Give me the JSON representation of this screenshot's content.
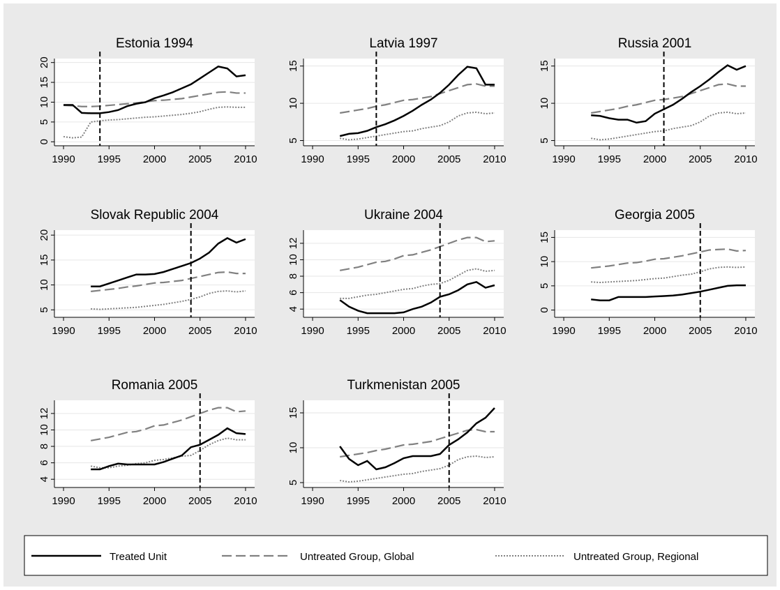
{
  "chart_data": [
    {
      "type": "line",
      "title": "Estonia 1994",
      "vline": 1994,
      "x": [
        1990,
        1991,
        1992,
        1993,
        1994,
        1995,
        1996,
        1997,
        1998,
        1999,
        2000,
        2001,
        2002,
        2003,
        2004,
        2005,
        2006,
        2007,
        2008,
        2009,
        2010
      ],
      "series": [
        {
          "color": "#000000",
          "style": "solid",
          "values": [
            9.3,
            9.3,
            7.3,
            7.2,
            7.2,
            7.5,
            8.0,
            9.0,
            9.6,
            10.0,
            11.0,
            11.7,
            12.5,
            13.5,
            14.5,
            16.0,
            17.5,
            19.0,
            18.5,
            16.5,
            16.8
          ]
        },
        {
          "color": "#808080",
          "style": "longdash",
          "values": [
            9.2,
            9.1,
            8.9,
            8.9,
            9.0,
            9.2,
            9.4,
            9.6,
            9.8,
            10.1,
            10.4,
            10.5,
            10.7,
            10.9,
            11.3,
            11.7,
            12.1,
            12.5,
            12.6,
            12.3,
            12.3
          ]
        },
        {
          "color": "#808080",
          "style": "dot",
          "values": [
            1.3,
            1.0,
            1.2,
            5.0,
            5.3,
            5.5,
            5.6,
            5.8,
            6.0,
            6.2,
            6.3,
            6.5,
            6.7,
            6.9,
            7.2,
            7.6,
            8.2,
            8.7,
            8.8,
            8.7,
            8.7
          ]
        }
      ],
      "xlim": [
        1989,
        2011
      ],
      "xticks": [
        1990,
        1995,
        2000,
        2005,
        2010
      ],
      "ylim": [
        -1,
        21
      ],
      "yticks": [
        0,
        5,
        10,
        15,
        20
      ]
    },
    {
      "type": "line",
      "title": "Latvia 1997",
      "vline": 1997,
      "x": [
        1993,
        1994,
        1995,
        1996,
        1997,
        1998,
        1999,
        2000,
        2001,
        2002,
        2003,
        2004,
        2005,
        2006,
        2007,
        2008,
        2009,
        2010
      ],
      "series": [
        {
          "color": "#000000",
          "style": "solid",
          "values": [
            5.6,
            5.9,
            6.0,
            6.3,
            6.8,
            7.2,
            7.7,
            8.3,
            9.0,
            9.8,
            10.5,
            11.4,
            12.5,
            13.8,
            14.9,
            14.7,
            12.5,
            12.5
          ]
        },
        {
          "color": "#808080",
          "style": "longdash",
          "values": [
            8.7,
            8.9,
            9.1,
            9.3,
            9.6,
            9.8,
            10.1,
            10.4,
            10.5,
            10.7,
            10.9,
            11.3,
            11.7,
            12.1,
            12.5,
            12.6,
            12.3,
            12.3
          ]
        },
        {
          "color": "#808080",
          "style": "dot",
          "values": [
            5.3,
            5.1,
            5.2,
            5.4,
            5.6,
            5.8,
            6.0,
            6.2,
            6.3,
            6.6,
            6.8,
            7.0,
            7.5,
            8.3,
            8.7,
            8.8,
            8.6,
            8.7
          ]
        }
      ],
      "xlim": [
        1989,
        2011
      ],
      "xticks": [
        1990,
        1995,
        2000,
        2005,
        2010
      ],
      "ylim": [
        4.3,
        16
      ],
      "yticks": [
        5,
        10,
        15
      ]
    },
    {
      "type": "line",
      "title": "Russia 2001",
      "vline": 2001,
      "x": [
        1993,
        1994,
        1995,
        1996,
        1997,
        1998,
        1999,
        2000,
        2001,
        2002,
        2003,
        2004,
        2005,
        2006,
        2007,
        2008,
        2009,
        2010
      ],
      "series": [
        {
          "color": "#000000",
          "style": "solid",
          "values": [
            8.4,
            8.3,
            8.0,
            7.8,
            7.8,
            7.4,
            7.6,
            8.6,
            9.2,
            9.8,
            10.6,
            11.5,
            12.3,
            13.2,
            14.2,
            15.1,
            14.5,
            15.0
          ]
        },
        {
          "color": "#808080",
          "style": "longdash",
          "values": [
            8.7,
            8.9,
            9.1,
            9.3,
            9.6,
            9.8,
            10.1,
            10.4,
            10.5,
            10.7,
            10.9,
            11.3,
            11.7,
            12.1,
            12.5,
            12.6,
            12.3,
            12.3
          ]
        },
        {
          "color": "#808080",
          "style": "dot",
          "values": [
            5.3,
            5.1,
            5.2,
            5.4,
            5.6,
            5.8,
            6.0,
            6.2,
            6.3,
            6.6,
            6.8,
            7.0,
            7.5,
            8.3,
            8.7,
            8.8,
            8.6,
            8.7
          ]
        }
      ],
      "xlim": [
        1989,
        2011
      ],
      "xticks": [
        1990,
        1995,
        2000,
        2005,
        2010
      ],
      "ylim": [
        4.3,
        16
      ],
      "yticks": [
        5,
        10,
        15
      ]
    },
    {
      "type": "line",
      "title": "Slovak Republic 2004",
      "vline": 2004,
      "x": [
        1993,
        1994,
        1995,
        1996,
        1997,
        1998,
        1999,
        2000,
        2001,
        2002,
        2003,
        2004,
        2005,
        2006,
        2007,
        2008,
        2009,
        2010
      ],
      "series": [
        {
          "color": "#000000",
          "style": "solid",
          "values": [
            9.7,
            9.7,
            10.3,
            10.9,
            11.5,
            12.1,
            12.1,
            12.2,
            12.6,
            13.2,
            13.8,
            14.4,
            15.3,
            16.5,
            18.3,
            19.4,
            18.5,
            19.2
          ]
        },
        {
          "color": "#808080",
          "style": "longdash",
          "values": [
            8.7,
            8.9,
            9.1,
            9.3,
            9.6,
            9.8,
            10.1,
            10.4,
            10.5,
            10.7,
            10.9,
            11.3,
            11.7,
            12.1,
            12.5,
            12.6,
            12.3,
            12.3
          ]
        },
        {
          "color": "#808080",
          "style": "dot",
          "values": [
            5.2,
            5.1,
            5.2,
            5.3,
            5.4,
            5.5,
            5.7,
            5.9,
            6.1,
            6.4,
            6.7,
            7.1,
            7.6,
            8.3,
            8.7,
            8.8,
            8.6,
            8.8
          ]
        }
      ],
      "xlim": [
        1989,
        2011
      ],
      "xticks": [
        1990,
        1995,
        2000,
        2005,
        2010
      ],
      "ylim": [
        3.5,
        21
      ],
      "yticks": [
        5,
        10,
        15,
        20
      ]
    },
    {
      "type": "line",
      "title": "Ukraine 2004",
      "vline": 2004,
      "x": [
        1993,
        1994,
        1995,
        1996,
        1997,
        1998,
        1999,
        2000,
        2001,
        2002,
        2003,
        2004,
        2005,
        2006,
        2007,
        2008,
        2009,
        2010
      ],
      "series": [
        {
          "color": "#000000",
          "style": "solid",
          "values": [
            5.1,
            4.3,
            3.8,
            3.5,
            3.5,
            3.5,
            3.5,
            3.6,
            4.0,
            4.3,
            4.8,
            5.5,
            5.8,
            6.3,
            7.0,
            7.3,
            6.6,
            6.9
          ]
        },
        {
          "color": "#808080",
          "style": "longdash",
          "values": [
            8.7,
            8.9,
            9.1,
            9.4,
            9.7,
            9.8,
            10.1,
            10.5,
            10.6,
            10.9,
            11.2,
            11.6,
            12.0,
            12.4,
            12.7,
            12.7,
            12.2,
            12.3
          ]
        },
        {
          "color": "#808080",
          "style": "dot",
          "values": [
            5.3,
            5.3,
            5.5,
            5.7,
            5.8,
            6.0,
            6.2,
            6.4,
            6.5,
            6.8,
            7.0,
            7.1,
            7.5,
            8.1,
            8.7,
            8.9,
            8.6,
            8.7
          ]
        }
      ],
      "xlim": [
        1989,
        2011
      ],
      "xticks": [
        1990,
        1995,
        2000,
        2005,
        2010
      ],
      "ylim": [
        3,
        13.6
      ],
      "yticks": [
        4,
        6,
        8,
        10,
        12
      ]
    },
    {
      "type": "line",
      "title": "Georgia 2005",
      "vline": 2005,
      "x": [
        1993,
        1994,
        1995,
        1996,
        1997,
        1998,
        1999,
        2000,
        2001,
        2002,
        2003,
        2004,
        2005,
        2006,
        2007,
        2008,
        2009,
        2010
      ],
      "series": [
        {
          "color": "#000000",
          "style": "solid",
          "values": [
            2.2,
            2.0,
            2.0,
            2.7,
            2.7,
            2.7,
            2.7,
            2.8,
            2.9,
            3.0,
            3.2,
            3.5,
            3.8,
            4.2,
            4.6,
            5.0,
            5.1,
            5.1
          ]
        },
        {
          "color": "#808080",
          "style": "longdash",
          "values": [
            8.7,
            8.9,
            9.1,
            9.4,
            9.7,
            9.8,
            10.1,
            10.5,
            10.6,
            10.9,
            11.2,
            11.6,
            12.0,
            12.4,
            12.5,
            12.6,
            12.2,
            12.3
          ]
        },
        {
          "color": "#808080",
          "style": "dot",
          "values": [
            5.8,
            5.7,
            5.8,
            5.9,
            6.0,
            6.1,
            6.3,
            6.5,
            6.6,
            6.9,
            7.2,
            7.4,
            7.9,
            8.5,
            8.8,
            8.9,
            8.8,
            8.9
          ]
        }
      ],
      "xlim": [
        1989,
        2011
      ],
      "xticks": [
        1990,
        1995,
        2000,
        2005,
        2010
      ],
      "ylim": [
        -1.5,
        16.5
      ],
      "yticks": [
        0,
        5,
        10,
        15
      ]
    },
    {
      "type": "line",
      "title": "Romania 2005",
      "vline": 2005,
      "x": [
        1993,
        1994,
        1995,
        1996,
        1997,
        1998,
        1999,
        2000,
        2001,
        2002,
        2003,
        2004,
        2005,
        2006,
        2007,
        2008,
        2009,
        2010
      ],
      "series": [
        {
          "color": "#000000",
          "style": "solid",
          "values": [
            5.2,
            5.2,
            5.6,
            5.9,
            5.8,
            5.8,
            5.8,
            5.8,
            6.1,
            6.5,
            6.9,
            7.9,
            8.2,
            8.8,
            9.4,
            10.2,
            9.6,
            9.5
          ]
        },
        {
          "color": "#808080",
          "style": "longdash",
          "values": [
            8.7,
            8.9,
            9.1,
            9.4,
            9.7,
            9.8,
            10.1,
            10.5,
            10.6,
            10.9,
            11.2,
            11.6,
            12.0,
            12.4,
            12.7,
            12.7,
            12.2,
            12.3
          ]
        },
        {
          "color": "#808080",
          "style": "dot",
          "values": [
            5.6,
            5.4,
            5.4,
            5.6,
            5.7,
            5.9,
            6.0,
            6.3,
            6.4,
            6.6,
            6.8,
            6.9,
            7.5,
            8.2,
            8.7,
            9.0,
            8.8,
            8.8
          ]
        }
      ],
      "xlim": [
        1989,
        2011
      ],
      "xticks": [
        1990,
        1995,
        2000,
        2005,
        2010
      ],
      "ylim": [
        3,
        13.6
      ],
      "yticks": [
        4,
        6,
        8,
        10,
        12
      ]
    },
    {
      "type": "line",
      "title": "Turkmenistan 2005",
      "vline": 2005,
      "x": [
        1993,
        1994,
        1995,
        1996,
        1997,
        1998,
        1999,
        2000,
        2001,
        2002,
        2003,
        2004,
        2005,
        2006,
        2007,
        2008,
        2009,
        2010
      ],
      "series": [
        {
          "color": "#000000",
          "style": "solid",
          "values": [
            10.2,
            8.4,
            7.5,
            8.1,
            6.9,
            7.2,
            7.8,
            8.5,
            8.8,
            8.8,
            8.8,
            9.1,
            10.4,
            11.2,
            12.2,
            13.5,
            14.3,
            15.7
          ]
        },
        {
          "color": "#808080",
          "style": "longdash",
          "values": [
            8.7,
            8.9,
            9.1,
            9.3,
            9.6,
            9.8,
            10.1,
            10.4,
            10.5,
            10.7,
            10.9,
            11.3,
            11.7,
            12.1,
            12.5,
            12.6,
            12.3,
            12.3
          ]
        },
        {
          "color": "#808080",
          "style": "dot",
          "values": [
            5.3,
            5.1,
            5.2,
            5.4,
            5.6,
            5.8,
            6.0,
            6.2,
            6.3,
            6.6,
            6.8,
            7.0,
            7.5,
            8.3,
            8.7,
            8.8,
            8.6,
            8.7
          ]
        }
      ],
      "xlim": [
        1989,
        2011
      ],
      "xticks": [
        1990,
        1995,
        2000,
        2005,
        2010
      ],
      "ylim": [
        4.3,
        16.8
      ],
      "yticks": [
        5,
        10,
        15
      ]
    }
  ],
  "legend": [
    {
      "name": "Treated Unit",
      "color": "#000000",
      "style": "solid"
    },
    {
      "name": "Untreated Group, Global",
      "color": "#808080",
      "style": "longdash"
    },
    {
      "name": "Untreated Group, Regional",
      "color": "#808080",
      "style": "dot"
    }
  ]
}
